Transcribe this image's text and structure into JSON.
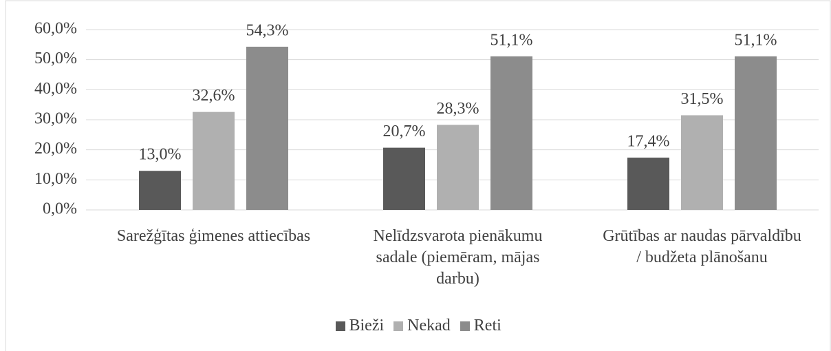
{
  "chart_data": {
    "type": "bar",
    "categories": [
      "Sarežģītas ģimenes attiecības",
      "Nelīdzsvarota pienākumu sadale (piemēram, mājas darbu)",
      "Grūtības ar naudas pārvaldību / budžeta plānošanu"
    ],
    "series": [
      {
        "name": "Bieži",
        "color": "#595959",
        "values": [
          13.0,
          20.7,
          17.4
        ],
        "value_labels": [
          "13,0%",
          "20,7%",
          "17,4%"
        ]
      },
      {
        "name": "Nekad",
        "color": "#b0b0b0",
        "values": [
          32.6,
          28.3,
          31.5
        ],
        "value_labels": [
          "32,6%",
          "28,3%",
          "31,5%"
        ]
      },
      {
        "name": "Reti",
        "color": "#8c8c8c",
        "values": [
          54.3,
          51.1,
          51.1
        ],
        "value_labels": [
          "54,3%",
          "51,1%",
          "51,1%"
        ]
      }
    ],
    "ylim": [
      0,
      60
    ],
    "yticks": [
      {
        "value": 0,
        "label": "0,0%"
      },
      {
        "value": 10,
        "label": "10,0%"
      },
      {
        "value": 20,
        "label": "20,0%"
      },
      {
        "value": 30,
        "label": "30,0%"
      },
      {
        "value": 40,
        "label": "40,0%"
      },
      {
        "value": 50,
        "label": "50,0%"
      },
      {
        "value": 60,
        "label": "60,0%"
      }
    ],
    "grid": true,
    "legend": "bottom"
  }
}
